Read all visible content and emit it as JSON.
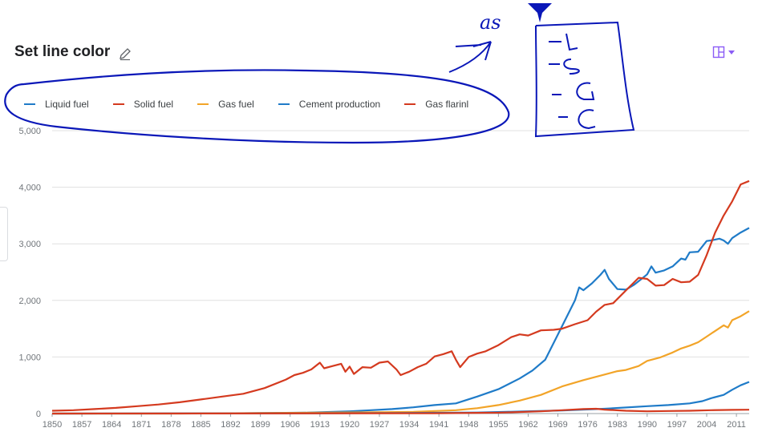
{
  "header": {
    "title": "Set line color",
    "edit_icon": "pencil-icon",
    "layout_icon": "layout-grid-icon",
    "menu_icon": "caret-down-icon"
  },
  "colors": {
    "liquid": "#1f7bc8",
    "solid": "#d43a1f",
    "gas": "#f2a428",
    "cement": "#1f7bc8",
    "flaring": "#d43a1f",
    "grid": "#e0e0e0",
    "accent": "#8b5cf6",
    "annotation": "#0a17b8"
  },
  "legend": [
    {
      "label": "Liquid fuel",
      "color": "#1f7bc8"
    },
    {
      "label": "Solid fuel",
      "color": "#d43a1f"
    },
    {
      "label": "Gas fuel",
      "color": "#f2a428"
    },
    {
      "label": "Cement production",
      "color": "#1f7bc8"
    },
    {
      "label": "Gas flarinl",
      "color": "#d43a1f"
    }
  ],
  "chart_data": {
    "type": "line",
    "xlim": [
      1850,
      2014
    ],
    "ylim": [
      0,
      5000
    ],
    "x_ticks": [
      "1850",
      "1857",
      "1864",
      "1871",
      "1878",
      "1885",
      "1892",
      "1899",
      "1906",
      "1913",
      "1920",
      "1927",
      "1934",
      "1941",
      "1948",
      "1955",
      "1962",
      "1969",
      "1976",
      "1983",
      "1990",
      "1997",
      "2004",
      "2011"
    ],
    "y_ticks": [
      "0",
      "1,000",
      "2,000",
      "3,000",
      "4,000",
      "5,000"
    ],
    "y_tick_values": [
      0,
      1000,
      2000,
      3000,
      4000,
      5000
    ],
    "grid": true,
    "legend_position": "top-left",
    "series": [
      {
        "name": "Liquid fuel",
        "color": "#1f7bc8",
        "points": [
          [
            1850,
            0
          ],
          [
            1870,
            0
          ],
          [
            1890,
            3
          ],
          [
            1900,
            8
          ],
          [
            1910,
            15
          ],
          [
            1920,
            40
          ],
          [
            1925,
            60
          ],
          [
            1930,
            80
          ],
          [
            1935,
            110
          ],
          [
            1940,
            150
          ],
          [
            1945,
            180
          ],
          [
            1950,
            300
          ],
          [
            1955,
            430
          ],
          [
            1960,
            620
          ],
          [
            1963,
            760
          ],
          [
            1966,
            950
          ],
          [
            1969,
            1400
          ],
          [
            1972,
            1850
          ],
          [
            1973,
            2000
          ],
          [
            1974,
            2230
          ],
          [
            1975,
            2180
          ],
          [
            1977,
            2300
          ],
          [
            1979,
            2450
          ],
          [
            1980,
            2540
          ],
          [
            1981,
            2380
          ],
          [
            1983,
            2200
          ],
          [
            1985,
            2190
          ],
          [
            1987,
            2280
          ],
          [
            1989,
            2400
          ],
          [
            1990,
            2460
          ],
          [
            1991,
            2600
          ],
          [
            1992,
            2490
          ],
          [
            1994,
            2530
          ],
          [
            1996,
            2600
          ],
          [
            1998,
            2740
          ],
          [
            1999,
            2720
          ],
          [
            2000,
            2850
          ],
          [
            2002,
            2860
          ],
          [
            2004,
            3050
          ],
          [
            2005,
            3060
          ],
          [
            2007,
            3090
          ],
          [
            2008,
            3060
          ],
          [
            2009,
            3000
          ],
          [
            2010,
            3100
          ],
          [
            2012,
            3200
          ],
          [
            2014,
            3280
          ]
        ]
      },
      {
        "name": "Solid fuel",
        "color": "#d43a1f",
        "points": [
          [
            1850,
            50
          ],
          [
            1855,
            60
          ],
          [
            1860,
            80
          ],
          [
            1865,
            100
          ],
          [
            1870,
            130
          ],
          [
            1875,
            160
          ],
          [
            1880,
            200
          ],
          [
            1885,
            250
          ],
          [
            1890,
            300
          ],
          [
            1895,
            350
          ],
          [
            1900,
            450
          ],
          [
            1905,
            600
          ],
          [
            1907,
            680
          ],
          [
            1909,
            720
          ],
          [
            1911,
            780
          ],
          [
            1913,
            900
          ],
          [
            1914,
            800
          ],
          [
            1916,
            840
          ],
          [
            1918,
            880
          ],
          [
            1919,
            740
          ],
          [
            1920,
            830
          ],
          [
            1921,
            700
          ],
          [
            1923,
            820
          ],
          [
            1925,
            810
          ],
          [
            1927,
            900
          ],
          [
            1929,
            920
          ],
          [
            1931,
            780
          ],
          [
            1932,
            680
          ],
          [
            1934,
            740
          ],
          [
            1936,
            820
          ],
          [
            1938,
            880
          ],
          [
            1940,
            1010
          ],
          [
            1942,
            1050
          ],
          [
            1944,
            1100
          ],
          [
            1945,
            950
          ],
          [
            1946,
            820
          ],
          [
            1948,
            1000
          ],
          [
            1950,
            1060
          ],
          [
            1952,
            1100
          ],
          [
            1955,
            1210
          ],
          [
            1958,
            1350
          ],
          [
            1960,
            1400
          ],
          [
            1962,
            1380
          ],
          [
            1965,
            1470
          ],
          [
            1968,
            1480
          ],
          [
            1970,
            1500
          ],
          [
            1973,
            1580
          ],
          [
            1976,
            1650
          ],
          [
            1978,
            1800
          ],
          [
            1980,
            1920
          ],
          [
            1982,
            1950
          ],
          [
            1984,
            2100
          ],
          [
            1986,
            2250
          ],
          [
            1988,
            2400
          ],
          [
            1990,
            2380
          ],
          [
            1992,
            2260
          ],
          [
            1994,
            2270
          ],
          [
            1996,
            2380
          ],
          [
            1998,
            2320
          ],
          [
            2000,
            2330
          ],
          [
            2002,
            2450
          ],
          [
            2004,
            2800
          ],
          [
            2006,
            3200
          ],
          [
            2008,
            3500
          ],
          [
            2010,
            3750
          ],
          [
            2012,
            4050
          ],
          [
            2014,
            4110
          ]
        ]
      },
      {
        "name": "Gas fuel",
        "color": "#f2a428",
        "points": [
          [
            1850,
            0
          ],
          [
            1880,
            0
          ],
          [
            1900,
            8
          ],
          [
            1920,
            20
          ],
          [
            1935,
            30
          ],
          [
            1945,
            60
          ],
          [
            1950,
            95
          ],
          [
            1955,
            150
          ],
          [
            1960,
            230
          ],
          [
            1965,
            330
          ],
          [
            1970,
            480
          ],
          [
            1975,
            590
          ],
          [
            1980,
            690
          ],
          [
            1983,
            750
          ],
          [
            1985,
            770
          ],
          [
            1988,
            840
          ],
          [
            1990,
            930
          ],
          [
            1993,
            990
          ],
          [
            1996,
            1080
          ],
          [
            1998,
            1150
          ],
          [
            2000,
            1200
          ],
          [
            2002,
            1260
          ],
          [
            2004,
            1360
          ],
          [
            2006,
            1460
          ],
          [
            2008,
            1560
          ],
          [
            2009,
            1520
          ],
          [
            2010,
            1650
          ],
          [
            2012,
            1720
          ],
          [
            2014,
            1810
          ]
        ]
      },
      {
        "name": "Cement production",
        "color": "#1f7bc8",
        "points": [
          [
            1850,
            0
          ],
          [
            1900,
            3
          ],
          [
            1930,
            10
          ],
          [
            1950,
            18
          ],
          [
            1960,
            35
          ],
          [
            1970,
            55
          ],
          [
            1980,
            85
          ],
          [
            1990,
            130
          ],
          [
            1995,
            150
          ],
          [
            2000,
            180
          ],
          [
            2003,
            220
          ],
          [
            2005,
            270
          ],
          [
            2008,
            330
          ],
          [
            2010,
            420
          ],
          [
            2012,
            500
          ],
          [
            2014,
            560
          ]
        ]
      },
      {
        "name": "Gas flarinl",
        "color": "#d43a1f",
        "points": [
          [
            1850,
            0
          ],
          [
            1940,
            5
          ],
          [
            1955,
            15
          ],
          [
            1965,
            40
          ],
          [
            1970,
            60
          ],
          [
            1975,
            80
          ],
          [
            1978,
            85
          ],
          [
            1980,
            70
          ],
          [
            1985,
            50
          ],
          [
            1990,
            40
          ],
          [
            1995,
            45
          ],
          [
            2000,
            50
          ],
          [
            2005,
            60
          ],
          [
            2010,
            65
          ],
          [
            2014,
            68
          ]
        ]
      }
    ]
  },
  "annotations": {
    "handwritten_text": "as"
  }
}
